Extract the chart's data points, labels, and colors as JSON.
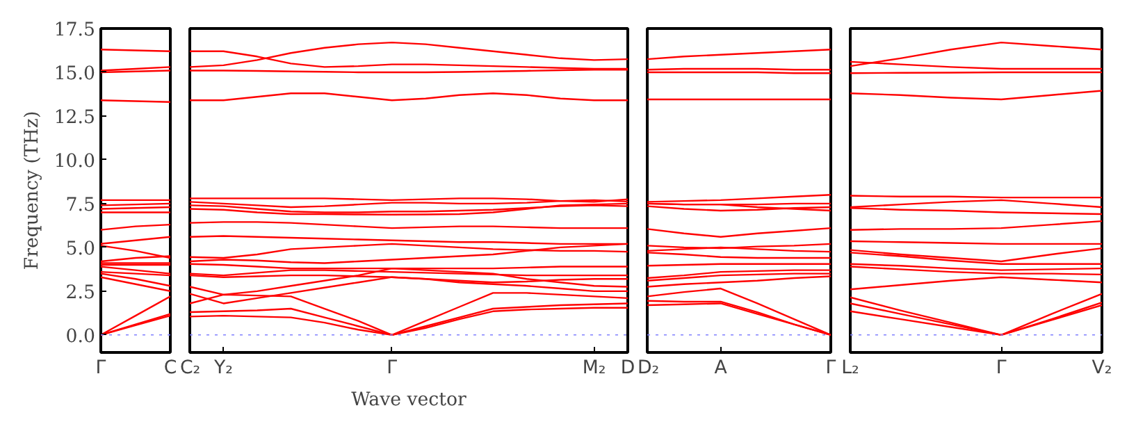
{
  "chart_data": [
    {
      "type": "line",
      "ylabel": "Frequency (THz)",
      "color": "#ff0000",
      "categories": [
        "Γ",
        null,
        "C"
      ],
      "ylim": [
        -1,
        17.5
      ],
      "yticks": [
        {
          "value": 0,
          "label": "0.0"
        },
        {
          "value": 2.5,
          "label": "2.5"
        },
        {
          "value": 5,
          "label": "5.0"
        },
        {
          "value": 7.5,
          "label": "7.5"
        },
        {
          "value": 10,
          "label": "10.0"
        },
        {
          "value": 12.5,
          "label": "12.5"
        },
        {
          "value": 15,
          "label": "15.0"
        },
        {
          "value": 17.5,
          "label": "17.5"
        }
      ],
      "ref_lines": [
        {
          "axis": "y",
          "value": 0,
          "color": "#8080ff",
          "line_style": "dotted"
        }
      ],
      "series": [
        {
          "values": [
            0,
            0.55,
            1.1
          ]
        },
        {
          "values": [
            0,
            0.6,
            1.2
          ]
        },
        {
          "values": [
            0,
            1.1,
            2.2
          ]
        },
        {
          "values": [
            3.3,
            2.9,
            2.5
          ]
        },
        {
          "values": [
            3.5,
            3.2,
            2.8
          ]
        },
        {
          "values": [
            3.6,
            3.5,
            3.4
          ]
        },
        {
          "values": [
            3.9,
            3.7,
            3.5
          ]
        },
        {
          "values": [
            4.0,
            4.0,
            4.0
          ]
        },
        {
          "values": [
            4.1,
            4.1,
            4.1
          ]
        },
        {
          "values": [
            4.2,
            4.4,
            4.5
          ]
        },
        {
          "values": [
            5.1,
            4.8,
            4.4
          ]
        },
        {
          "values": [
            5.2,
            5.4,
            5.6
          ]
        },
        {
          "values": [
            6.0,
            6.2,
            6.3
          ]
        },
        {
          "values": [
            7.0,
            7.0,
            7.0
          ]
        },
        {
          "values": [
            7.2,
            7.25,
            7.3
          ]
        },
        {
          "values": [
            7.4,
            7.45,
            7.5
          ]
        },
        {
          "values": [
            7.7,
            7.7,
            7.7
          ]
        },
        {
          "values": [
            13.4,
            13.35,
            13.3
          ]
        },
        {
          "values": [
            15.0,
            15.05,
            15.1
          ]
        },
        {
          "values": [
            15.1,
            15.2,
            15.3
          ]
        },
        {
          "values": [
            16.3,
            16.25,
            16.2
          ]
        }
      ]
    },
    {
      "type": "line",
      "xlabel": "Wave vector",
      "color": "#ff0000",
      "tick_labels": "x",
      "categories": [
        "C₂",
        "Y₂",
        null,
        null,
        null,
        null,
        "Γ",
        null,
        null,
        null,
        null,
        null,
        "M₂",
        "D"
      ],
      "ylim": [
        -1,
        17.5
      ],
      "ref_lines": [
        {
          "axis": "y",
          "value": 0,
          "color": "#8080ff",
          "line_style": "dotted"
        }
      ],
      "series": [
        {
          "values": [
            16.2,
            16.2,
            15.9,
            15.5,
            15.3,
            15.35,
            15.45,
            15.45,
            15.4,
            15.35,
            15.3,
            15.25,
            15.2,
            15.2
          ]
        },
        {
          "values": [
            15.3,
            15.4,
            15.7,
            16.1,
            16.4,
            16.6,
            16.7,
            16.6,
            16.4,
            16.2,
            16.0,
            15.8,
            15.7,
            15.75
          ]
        },
        {
          "values": [
            15.1,
            15.1,
            15.08,
            15.05,
            15.03,
            15.0,
            15.0,
            15.0,
            15.02,
            15.05,
            15.08,
            15.12,
            15.15,
            15.15
          ]
        },
        {
          "values": [
            13.4,
            13.4,
            13.6,
            13.8,
            13.8,
            13.6,
            13.4,
            13.5,
            13.7,
            13.8,
            13.7,
            13.5,
            13.4,
            13.4
          ]
        },
        {
          "values": [
            7.8,
            7.8,
            7.8,
            7.8,
            7.8,
            7.75,
            7.7,
            7.75,
            7.8,
            7.8,
            7.75,
            7.65,
            7.6,
            7.75
          ]
        },
        {
          "values": [
            7.6,
            7.5,
            7.4,
            7.3,
            7.35,
            7.45,
            7.55,
            7.55,
            7.5,
            7.5,
            7.55,
            7.65,
            7.7,
            7.62
          ]
        },
        {
          "values": [
            7.4,
            7.35,
            7.2,
            7.05,
            7.0,
            7.0,
            7.05,
            7.05,
            7.1,
            7.15,
            7.25,
            7.35,
            7.4,
            7.35
          ]
        },
        {
          "values": [
            7.2,
            7.15,
            7.0,
            6.9,
            6.9,
            6.88,
            6.87,
            6.88,
            6.9,
            7.0,
            7.2,
            7.4,
            7.45,
            7.5
          ]
        },
        {
          "values": [
            6.4,
            6.45,
            6.45,
            6.4,
            6.3,
            6.2,
            6.1,
            6.15,
            6.2,
            6.2,
            6.15,
            6.1,
            6.1,
            6.1
          ]
        },
        {
          "values": [
            5.6,
            5.65,
            5.6,
            5.55,
            5.5,
            5.45,
            5.4,
            5.35,
            5.3,
            5.3,
            5.25,
            5.2,
            5.2,
            5.2
          ]
        },
        {
          "values": [
            4.45,
            4.4,
            4.6,
            4.9,
            5.0,
            5.1,
            5.2,
            5.1,
            5.0,
            4.9,
            4.85,
            4.8,
            4.8,
            4.75
          ]
        },
        {
          "values": [
            4.2,
            4.3,
            4.25,
            4.15,
            4.1,
            4.2,
            4.3,
            4.4,
            4.5,
            4.6,
            4.8,
            5.0,
            5.1,
            5.2
          ]
        },
        {
          "values": [
            4.05,
            4.0,
            3.9,
            3.8,
            3.8,
            3.8,
            3.8,
            3.8,
            3.8,
            3.8,
            3.85,
            3.9,
            3.9,
            3.9
          ]
        },
        {
          "values": [
            3.5,
            3.4,
            3.55,
            3.7,
            3.7,
            3.65,
            3.6,
            3.55,
            3.5,
            3.45,
            3.4,
            3.4,
            3.4,
            3.4
          ]
        },
        {
          "values": [
            3.4,
            3.3,
            3.35,
            3.4,
            3.4,
            3.35,
            3.3,
            3.2,
            3.1,
            3.0,
            3.05,
            3.15,
            3.2,
            3.2
          ]
        },
        {
          "values": [
            2.75,
            2.3,
            2.5,
            2.8,
            3.1,
            3.4,
            3.8,
            3.7,
            3.6,
            3.5,
            3.2,
            3.0,
            2.8,
            2.75
          ]
        },
        {
          "values": [
            2.35,
            1.8,
            2.1,
            2.4,
            2.7,
            3.0,
            3.3,
            3.2,
            3.0,
            2.9,
            2.8,
            2.65,
            2.5,
            2.5
          ]
        },
        {
          "values": [
            1.8,
            2.3,
            2.25,
            2.2,
            1.5,
            0.8,
            0,
            0.8,
            1.6,
            2.4,
            2.4,
            2.3,
            2.2,
            2.1
          ]
        },
        {
          "values": [
            1.3,
            1.35,
            1.4,
            1.5,
            1.0,
            0.5,
            0,
            0.5,
            1.0,
            1.5,
            1.6,
            1.7,
            1.75,
            1.8
          ]
        },
        {
          "values": [
            1.05,
            1.1,
            1.05,
            1.0,
            0.7,
            0.3,
            0,
            0.4,
            0.9,
            1.35,
            1.45,
            1.5,
            1.55,
            1.55
          ]
        }
      ]
    },
    {
      "type": "line",
      "color": "#ff0000",
      "tick_labels": "x",
      "categories": [
        "D₂",
        null,
        "A",
        null,
        null,
        "Γ"
      ],
      "ylim": [
        -1,
        17.5
      ],
      "ref_lines": [
        {
          "axis": "y",
          "value": 0,
          "color": "#8080ff",
          "line_style": "dotted"
        }
      ],
      "series": [
        {
          "values": [
            15.75,
            15.9,
            16.0,
            16.1,
            16.2,
            16.3
          ]
        },
        {
          "values": [
            15.15,
            15.2,
            15.2,
            15.2,
            15.15,
            15.15
          ]
        },
        {
          "values": [
            15.0,
            15.0,
            15.0,
            15.0,
            14.95,
            14.95
          ]
        },
        {
          "values": [
            13.45,
            13.45,
            13.45,
            13.45,
            13.45,
            13.45
          ]
        },
        {
          "values": [
            7.6,
            7.65,
            7.7,
            7.8,
            7.9,
            8.0
          ]
        },
        {
          "values": [
            7.5,
            7.45,
            7.45,
            7.45,
            7.5,
            7.5
          ]
        },
        {
          "values": [
            7.35,
            7.2,
            7.1,
            7.15,
            7.25,
            7.3
          ]
        },
        {
          "values": [
            7.5,
            7.45,
            7.45,
            7.3,
            7.2,
            7.1
          ]
        },
        {
          "values": [
            6.05,
            5.8,
            5.6,
            5.8,
            5.95,
            6.1
          ]
        },
        {
          "values": [
            5.1,
            5.0,
            4.95,
            5.05,
            5.1,
            5.2
          ]
        },
        {
          "values": [
            4.8,
            4.9,
            5.0,
            4.9,
            4.8,
            4.75
          ]
        },
        {
          "values": [
            4.7,
            4.6,
            4.45,
            4.4,
            4.4,
            4.4
          ]
        },
        {
          "values": [
            3.95,
            4.0,
            4.05,
            4.05,
            4.05,
            4.05
          ]
        },
        {
          "values": [
            3.25,
            3.4,
            3.6,
            3.65,
            3.7,
            3.7
          ]
        },
        {
          "values": [
            3.1,
            3.25,
            3.4,
            3.45,
            3.5,
            3.5
          ]
        },
        {
          "values": [
            2.75,
            2.9,
            3.0,
            3.1,
            3.25,
            3.35
          ]
        },
        {
          "values": [
            2.2,
            2.45,
            2.65,
            1.8,
            0.9,
            0
          ]
        },
        {
          "values": [
            1.95,
            1.9,
            1.9,
            1.3,
            0.6,
            0
          ]
        },
        {
          "values": [
            1.7,
            1.75,
            1.8,
            1.2,
            0.6,
            0
          ]
        }
      ]
    },
    {
      "type": "line",
      "color": "#ff0000",
      "tick_labels": "x",
      "categories": [
        "L₂",
        null,
        null,
        "Γ",
        null,
        "V₂"
      ],
      "ylim": [
        -1,
        17.5
      ],
      "ref_lines": [
        {
          "axis": "y",
          "value": 0,
          "color": "#8080ff",
          "line_style": "dotted"
        }
      ],
      "series": [
        {
          "values": [
            15.35,
            15.8,
            16.3,
            16.7,
            16.5,
            16.3
          ]
        },
        {
          "values": [
            15.6,
            15.45,
            15.3,
            15.2,
            15.2,
            15.2
          ]
        },
        {
          "values": [
            14.95,
            14.97,
            14.98,
            15.0,
            15.0,
            15.0
          ]
        },
        {
          "values": [
            13.8,
            13.7,
            13.55,
            13.45,
            13.7,
            13.95
          ]
        },
        {
          "values": [
            7.95,
            7.9,
            7.9,
            7.85,
            7.85,
            7.85
          ]
        },
        {
          "values": [
            7.3,
            7.45,
            7.6,
            7.7,
            7.5,
            7.3
          ]
        },
        {
          "values": [
            7.25,
            7.15,
            7.1,
            7.0,
            6.95,
            6.9
          ]
        },
        {
          "values": [
            6.0,
            6.05,
            6.05,
            6.1,
            6.3,
            6.5
          ]
        },
        {
          "values": [
            5.35,
            5.3,
            5.25,
            5.2,
            5.2,
            5.2
          ]
        },
        {
          "values": [
            4.85,
            4.6,
            4.4,
            4.2,
            4.6,
            4.95
          ]
        },
        {
          "values": [
            4.7,
            4.5,
            4.25,
            4.05,
            4.05,
            4.05
          ]
        },
        {
          "values": [
            4.05,
            3.95,
            3.8,
            3.7,
            3.75,
            3.8
          ]
        },
        {
          "values": [
            3.9,
            3.75,
            3.6,
            3.5,
            3.5,
            3.45
          ]
        },
        {
          "values": [
            2.6,
            2.85,
            3.1,
            3.3,
            3.15,
            3.0
          ]
        },
        {
          "values": [
            2.15,
            1.4,
            0.7,
            0,
            1.2,
            2.35
          ]
        },
        {
          "values": [
            1.8,
            1.2,
            0.6,
            0,
            0.9,
            1.85
          ]
        },
        {
          "values": [
            1.35,
            0.9,
            0.45,
            0,
            0.85,
            1.7
          ]
        }
      ]
    }
  ]
}
